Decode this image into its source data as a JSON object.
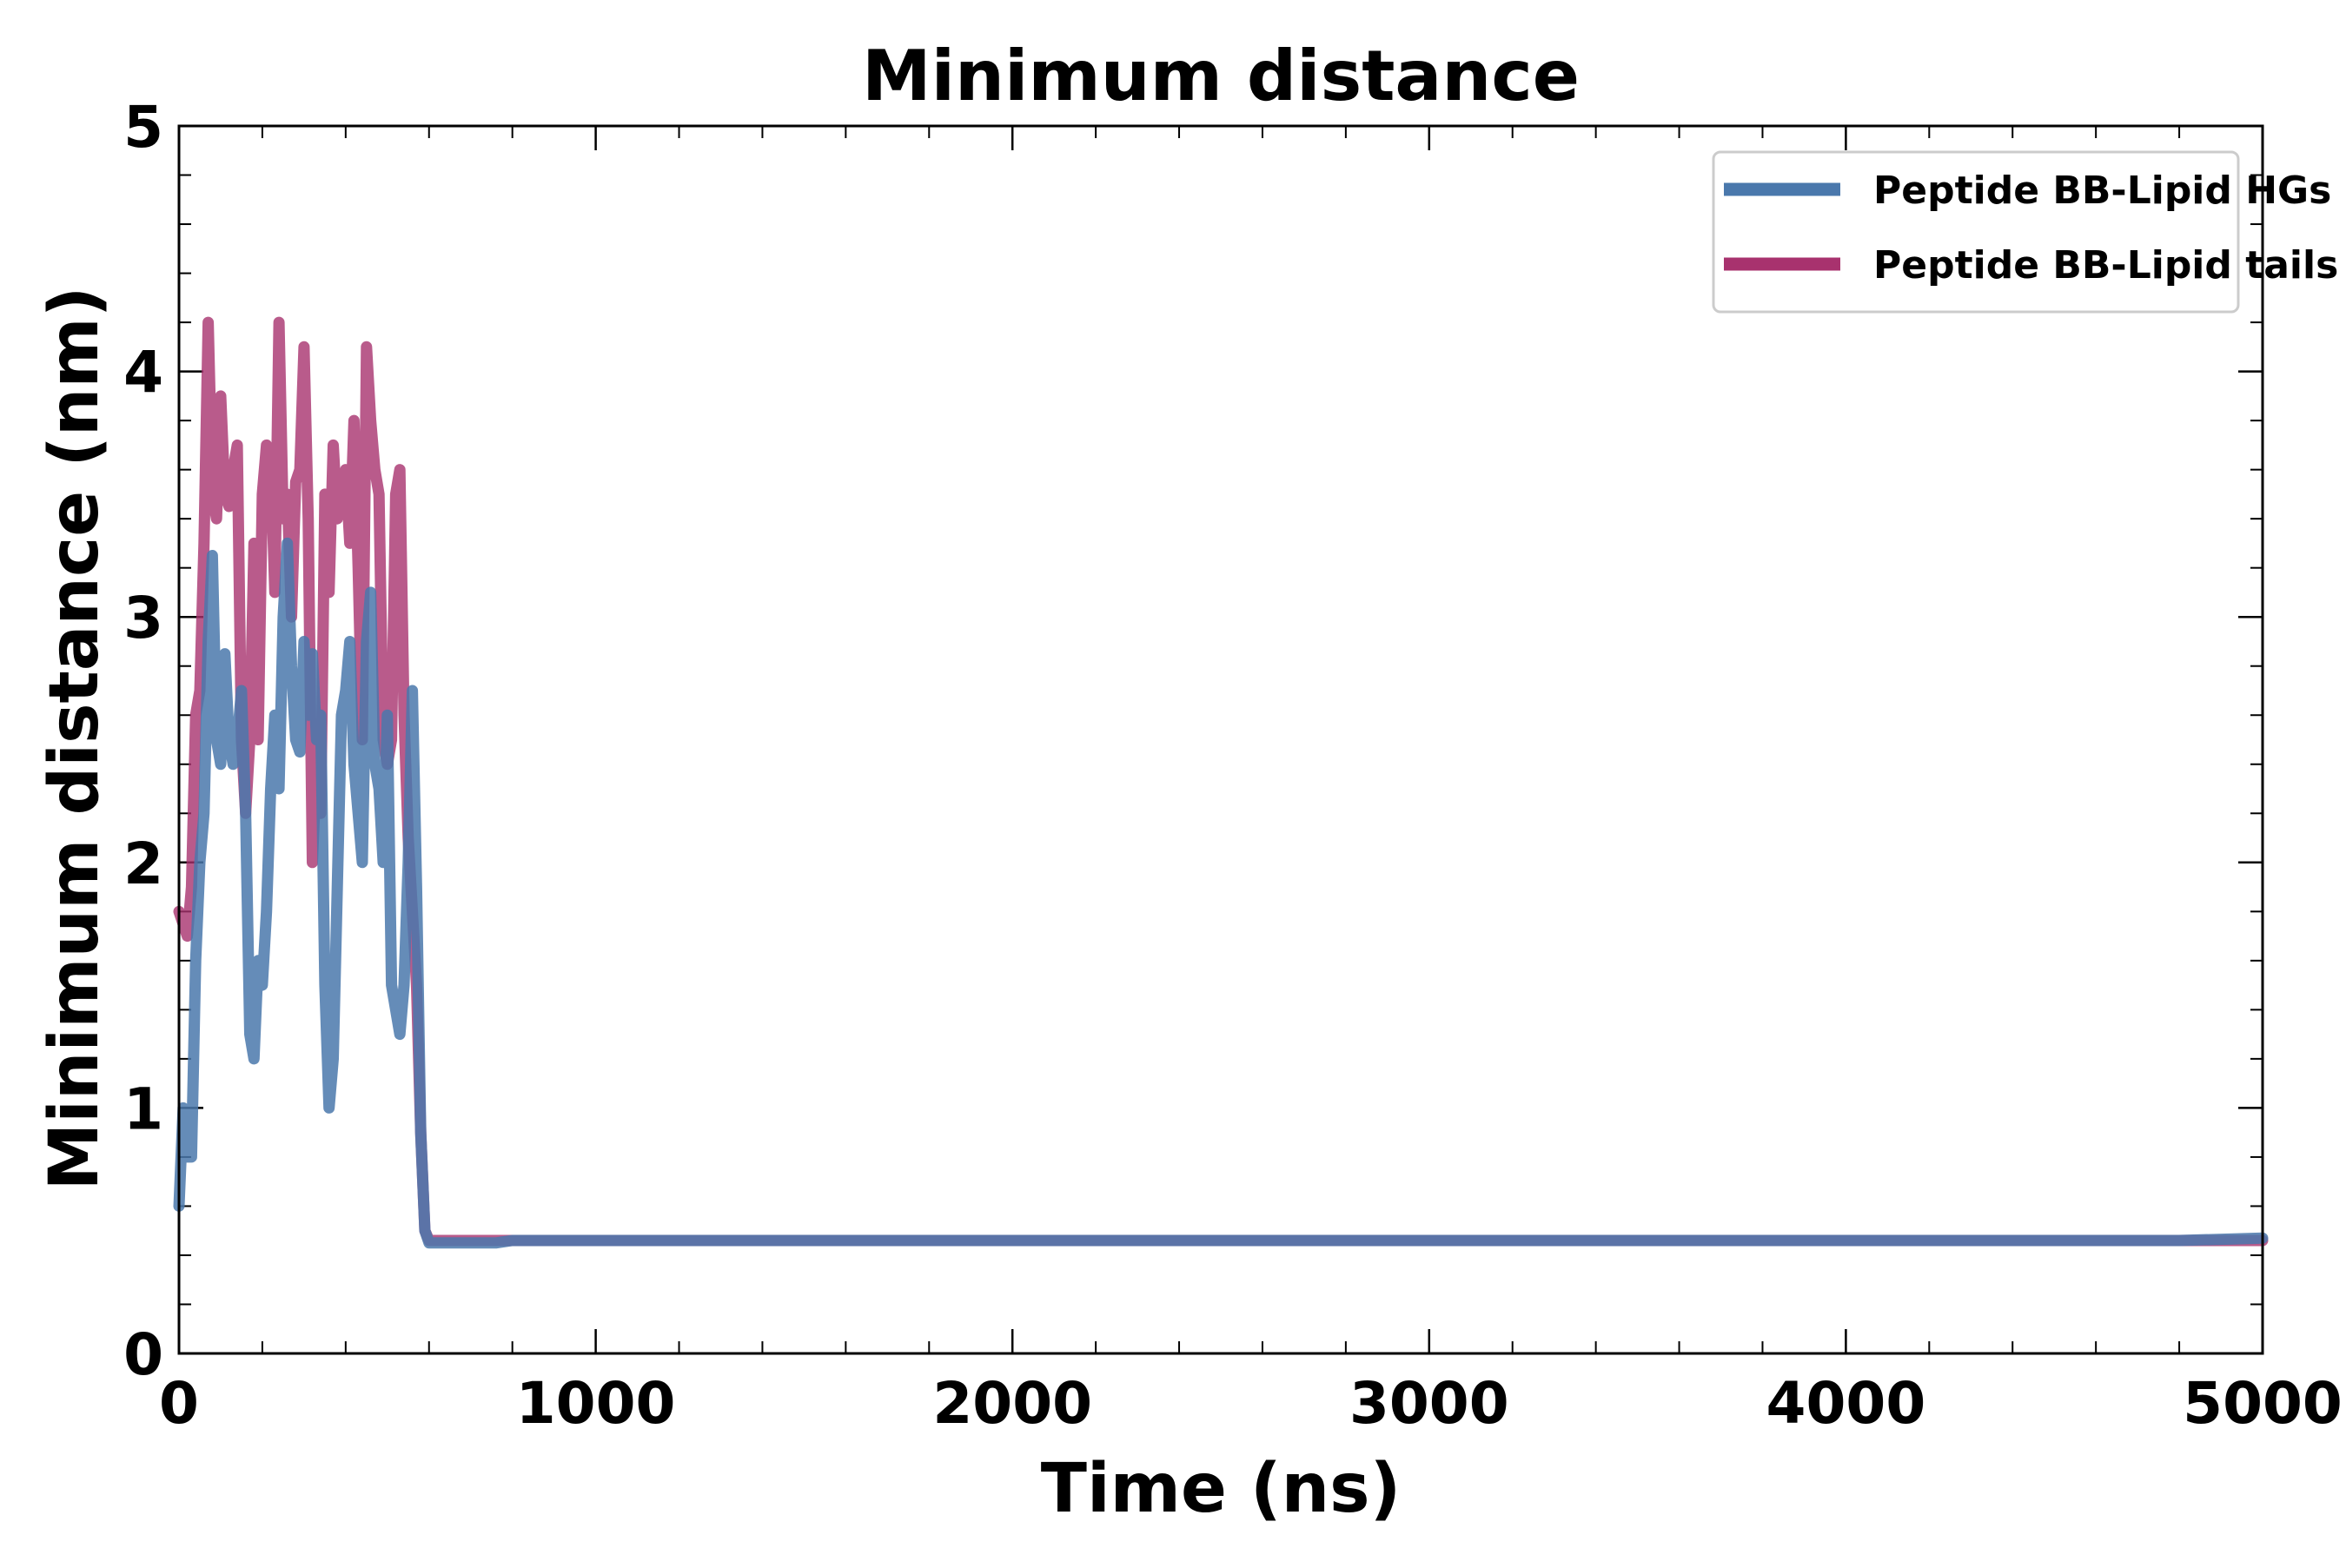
{
  "chart_data": {
    "type": "line",
    "title": "Minimum distance",
    "xlabel": "Time (ns)",
    "ylabel": "Minimum distance (nm)",
    "xlim": [
      0,
      5000
    ],
    "ylim": [
      0,
      5
    ],
    "x_ticks": [
      0,
      1000,
      2000,
      3000,
      4000,
      5000
    ],
    "x_tick_labels": [
      "0",
      "1000",
      "2000",
      "3000",
      "4000",
      "5000"
    ],
    "y_ticks": [
      0,
      1,
      2,
      3,
      4,
      5
    ],
    "y_tick_labels": [
      "0",
      "1",
      "2",
      "3",
      "4",
      "5"
    ],
    "x_minor_step": 200,
    "y_minor_step": 0.2,
    "grid": false,
    "legend_position": "top-right",
    "series": [
      {
        "name": "Peptide BB-Lipid HGs",
        "color": "#4a78ac",
        "x": [
          0,
          10,
          20,
          30,
          40,
          50,
          60,
          70,
          80,
          90,
          100,
          110,
          120,
          130,
          140,
          150,
          160,
          170,
          180,
          190,
          200,
          210,
          220,
          230,
          240,
          250,
          260,
          270,
          280,
          290,
          300,
          310,
          320,
          330,
          340,
          350,
          360,
          370,
          380,
          390,
          400,
          410,
          420,
          430,
          440,
          450,
          460,
          470,
          480,
          490,
          500,
          510,
          520,
          530,
          540,
          550,
          560,
          570,
          580,
          590,
          600,
          610,
          620,
          630,
          640,
          650,
          660,
          670,
          680,
          690,
          700,
          710,
          720,
          730,
          740,
          760,
          800,
          900,
          1000,
          1200,
          1400,
          1600,
          1800,
          2000,
          2200,
          2400,
          2600,
          2800,
          3000,
          3200,
          3400,
          3600,
          3800,
          4000,
          4200,
          4400,
          4600,
          4800,
          5000
        ],
        "y": [
          0.6,
          1.0,
          0.8,
          0.8,
          1.6,
          2.0,
          2.2,
          2.9,
          3.25,
          2.5,
          2.4,
          2.85,
          2.5,
          2.4,
          2.5,
          2.7,
          2.2,
          1.3,
          1.2,
          1.6,
          1.5,
          1.8,
          2.3,
          2.6,
          2.3,
          3.0,
          3.3,
          2.8,
          2.5,
          2.45,
          2.9,
          2.6,
          2.85,
          2.5,
          2.6,
          1.5,
          1.0,
          1.2,
          1.9,
          2.6,
          2.7,
          2.9,
          2.4,
          2.2,
          2.0,
          2.9,
          3.1,
          2.4,
          2.3,
          2.0,
          2.6,
          1.5,
          1.4,
          1.3,
          1.5,
          2.0,
          2.7,
          1.9,
          0.9,
          0.5,
          0.45,
          0.45,
          0.45,
          0.45,
          0.45,
          0.45,
          0.45,
          0.45,
          0.45,
          0.45,
          0.45,
          0.45,
          0.45,
          0.45,
          0.45,
          0.45,
          0.46,
          0.46,
          0.46,
          0.46,
          0.46,
          0.46,
          0.46,
          0.46,
          0.46,
          0.46,
          0.46,
          0.46,
          0.46,
          0.46,
          0.46,
          0.46,
          0.46,
          0.46,
          0.46,
          0.46,
          0.46,
          0.46,
          0.47
        ]
      },
      {
        "name": "Peptide BB-Lipid tails",
        "color": "#a8326e",
        "x": [
          0,
          10,
          20,
          30,
          40,
          50,
          60,
          70,
          80,
          90,
          100,
          110,
          120,
          130,
          140,
          150,
          160,
          170,
          180,
          190,
          200,
          210,
          220,
          230,
          240,
          250,
          260,
          270,
          280,
          290,
          300,
          310,
          320,
          330,
          340,
          350,
          360,
          370,
          380,
          390,
          400,
          410,
          420,
          430,
          440,
          450,
          460,
          470,
          480,
          490,
          500,
          510,
          520,
          530,
          540,
          550,
          560,
          570,
          580,
          590,
          600,
          610,
          620,
          630,
          640,
          650,
          660,
          670,
          680,
          690,
          700,
          710,
          720,
          730,
          740,
          760,
          800,
          900,
          1000,
          1200,
          1400,
          1600,
          1800,
          2000,
          2200,
          2400,
          2600,
          2800,
          3000,
          3200,
          3400,
          3600,
          3800,
          4000,
          4200,
          4400,
          4600,
          4800,
          5000
        ],
        "y": [
          1.8,
          1.75,
          1.7,
          1.9,
          2.6,
          2.7,
          3.3,
          4.2,
          3.5,
          3.4,
          3.9,
          3.5,
          3.45,
          3.6,
          3.7,
          2.5,
          2.2,
          2.5,
          3.3,
          2.5,
          3.5,
          3.7,
          3.65,
          3.1,
          4.2,
          3.4,
          3.5,
          3.0,
          3.55,
          3.6,
          4.1,
          3.4,
          2.0,
          2.4,
          2.2,
          3.5,
          3.1,
          3.7,
          3.4,
          3.5,
          3.6,
          3.3,
          3.8,
          3.2,
          2.5,
          4.1,
          3.8,
          3.6,
          3.5,
          2.5,
          2.4,
          2.5,
          3.5,
          3.6,
          2.6,
          2.1,
          1.8,
          1.5,
          0.9,
          0.5,
          0.46,
          0.46,
          0.46,
          0.46,
          0.46,
          0.46,
          0.46,
          0.46,
          0.46,
          0.46,
          0.46,
          0.46,
          0.46,
          0.46,
          0.46,
          0.46,
          0.46,
          0.46,
          0.46,
          0.46,
          0.46,
          0.46,
          0.46,
          0.46,
          0.46,
          0.46,
          0.46,
          0.46,
          0.46,
          0.46,
          0.46,
          0.46,
          0.46,
          0.46,
          0.46,
          0.46,
          0.46,
          0.46,
          0.46
        ]
      }
    ]
  }
}
